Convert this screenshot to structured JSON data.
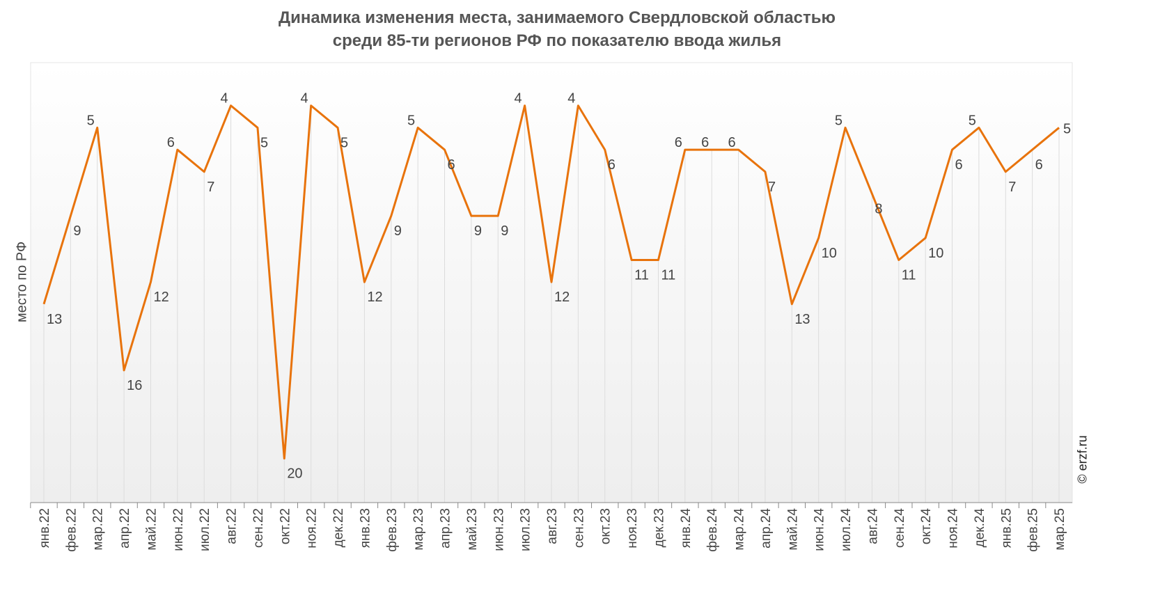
{
  "chart_data": {
    "type": "line",
    "title": "Динамика изменения места, занимаемого Свердловской областью",
    "subtitle": "среди 85-ти регионов РФ по показателю ввода жилья",
    "ylabel": "место по РФ",
    "xlabel": "",
    "y_inverted": true,
    "ylim": [
      0,
      22
    ],
    "grid": false,
    "color": "#e8730c",
    "categories": [
      "янв.22",
      "фев.22",
      "мар.22",
      "апр.22",
      "май.22",
      "июн.22",
      "июл.22",
      "авг.22",
      "сен.22",
      "окт.22",
      "ноя.22",
      "дек.22",
      "янв.23",
      "фев.23",
      "мар.23",
      "апр.23",
      "май.23",
      "июн.23",
      "июл.23",
      "авг.23",
      "сен.23",
      "окт.23",
      "ноя.23",
      "дек.23",
      "янв.24",
      "фев.24",
      "мар.24",
      "апр.24",
      "май.24",
      "июн.24",
      "июл.24",
      "авг.24",
      "сен.24",
      "окт.24",
      "ноя.24",
      "дек.24",
      "янв.25",
      "фев.25",
      "мар.25"
    ],
    "values": [
      13,
      9,
      5,
      16,
      12,
      6,
      7,
      4,
      5,
      20,
      4,
      5,
      12,
      9,
      5,
      6,
      9,
      9,
      4,
      12,
      4,
      6,
      11,
      11,
      6,
      6,
      6,
      7,
      13,
      10,
      5,
      8,
      11,
      10,
      6,
      5,
      7,
      6,
      5
    ]
  },
  "watermark": "© erzf.ru"
}
